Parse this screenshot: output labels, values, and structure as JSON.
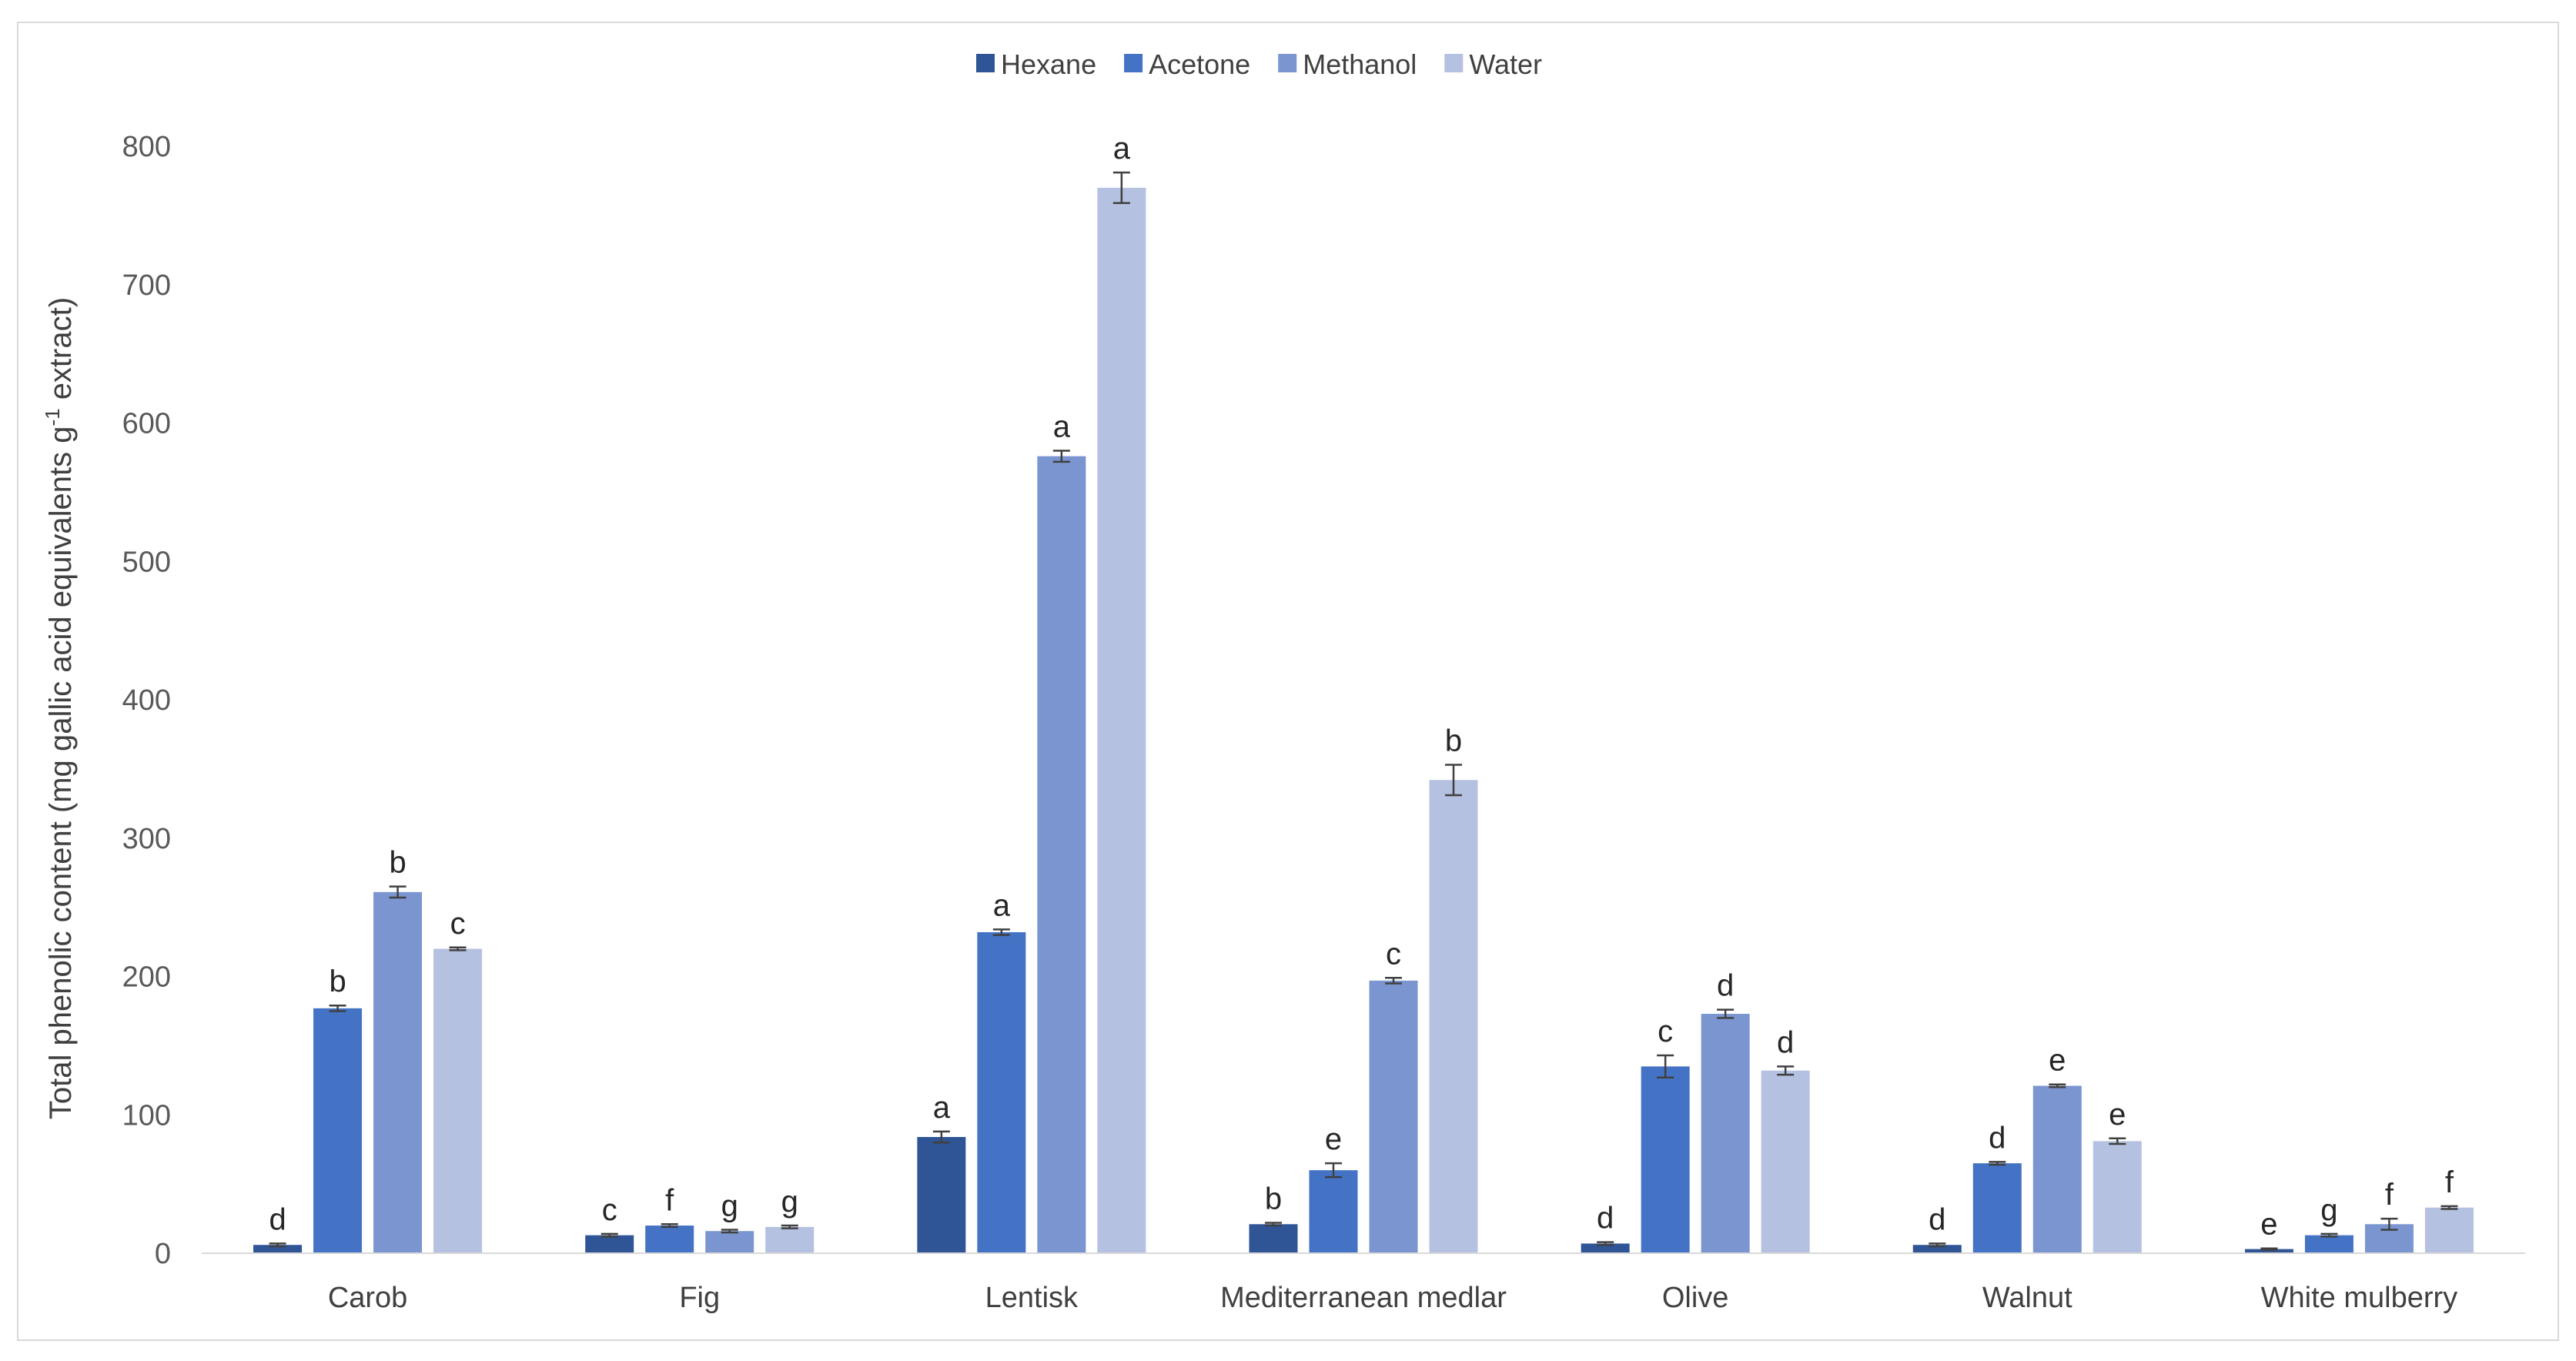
{
  "chart_data": {
    "type": "bar",
    "title": "",
    "xlabel": "",
    "ylabel": "Total phenolic content (mg gallic acid equivalents g",
    "ylabel_superscript": "-1",
    "ylabel_suffix": " extract)",
    "ylim": [
      0,
      800
    ],
    "yticks": [
      0,
      100,
      200,
      300,
      400,
      500,
      600,
      700,
      800
    ],
    "grid": false,
    "legend_position": "top-center",
    "categories": [
      "Carob",
      "Fig",
      "Lentisk",
      "Mediterranean medlar",
      "Olive",
      "Walnut",
      "White mulberry"
    ],
    "series": [
      {
        "name": "Hexane",
        "color": "#2f5597",
        "values": [
          6,
          13,
          84,
          21,
          7,
          6,
          3
        ],
        "errors": [
          1,
          1,
          4,
          1,
          1,
          1,
          0.5
        ],
        "letters": [
          "d",
          "c",
          "a",
          "b",
          "d",
          "d",
          "e"
        ]
      },
      {
        "name": "Acetone",
        "color": "#4472c4",
        "values": [
          177,
          20,
          232,
          60,
          135,
          65,
          13
        ],
        "errors": [
          2,
          1,
          2,
          5,
          8,
          1,
          1
        ],
        "letters": [
          "b",
          "f",
          "a",
          "e",
          "c",
          "d",
          "g"
        ]
      },
      {
        "name": "Methanol",
        "color": "#7b95d0",
        "values": [
          261,
          16,
          576,
          197,
          173,
          121,
          21
        ],
        "errors": [
          4,
          1,
          4,
          2,
          3,
          1,
          4
        ],
        "letters": [
          "b",
          "g",
          "a",
          "c",
          "d",
          "e",
          "f"
        ]
      },
      {
        "name": "Water",
        "color": "#b4c1e0",
        "values": [
          220,
          19,
          770,
          342,
          132,
          81,
          33
        ],
        "errors": [
          1,
          1,
          11,
          11,
          3,
          2,
          1
        ],
        "letters": [
          "c",
          "g",
          "a",
          "b",
          "d",
          "e",
          "f"
        ]
      }
    ]
  }
}
